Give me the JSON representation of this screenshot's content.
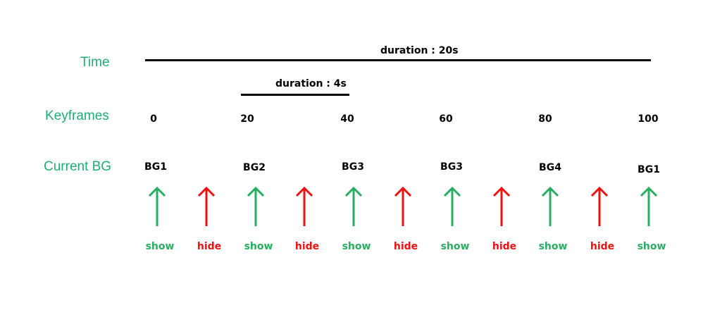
{
  "labels": {
    "time": "Time",
    "keyframes": "Keyframes",
    "current_bg": "Current BG"
  },
  "timeline": {
    "total_duration": "duration : 20s",
    "segment_duration": "duration : 4s"
  },
  "keyframes": [
    "0",
    "20",
    "40",
    "60",
    "80",
    "100"
  ],
  "backgrounds": [
    "BG1",
    "BG2",
    "BG3",
    "BG3",
    "BG4",
    "BG1"
  ],
  "events": [
    {
      "action": "show",
      "type": "show"
    },
    {
      "action": "hide",
      "type": "hide"
    },
    {
      "action": "show",
      "type": "show"
    },
    {
      "action": "hide",
      "type": "hide"
    },
    {
      "action": "show",
      "type": "show"
    },
    {
      "action": "hide",
      "type": "hide"
    },
    {
      "action": "show",
      "type": "show"
    },
    {
      "action": "hide",
      "type": "hide"
    },
    {
      "action": "show",
      "type": "show"
    },
    {
      "action": "hide",
      "type": "hide"
    },
    {
      "action": "show",
      "type": "show"
    }
  ],
  "colors": {
    "label": "#1fae72",
    "show": "#27ae60",
    "hide": "#ee1111",
    "line": "#000000"
  }
}
